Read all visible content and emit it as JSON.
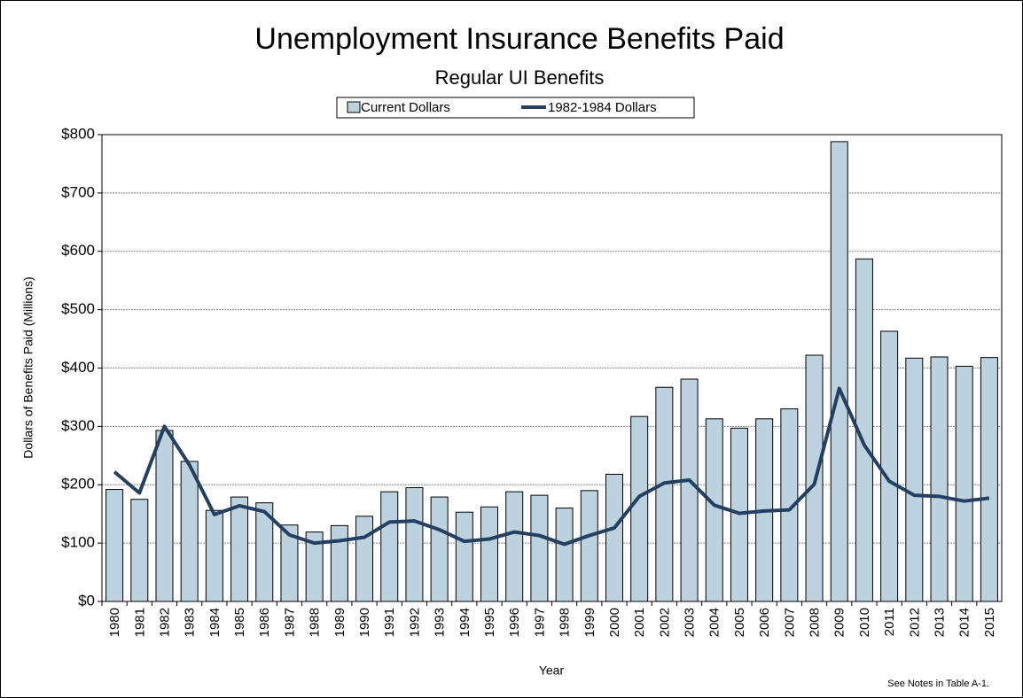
{
  "chart_data": {
    "type": "bar_line",
    "title": "Unemployment Insurance Benefits Paid",
    "subtitle": "Regular UI Benefits",
    "x_label": "Year",
    "y_label": "Dollars of Benefits Paid (Millions)",
    "note": "See Notes in Table A-1.",
    "categories": [
      "1980",
      "1981",
      "1982",
      "1983",
      "1984",
      "1985",
      "1986",
      "1987",
      "1988",
      "1989",
      "1990",
      "1991",
      "1992",
      "1993",
      "1994",
      "1995",
      "1996",
      "1997",
      "1998",
      "1999",
      "2000",
      "2001",
      "2002",
      "2003",
      "2004",
      "2005",
      "2006",
      "2007",
      "2008",
      "2009",
      "2010",
      "2011",
      "2012",
      "2013",
      "2014",
      "2015"
    ],
    "series": [
      {
        "name": "Current Dollars",
        "type": "bar",
        "color": "#bcd3df",
        "values": [
          192,
          175,
          293,
          240,
          156,
          179,
          169,
          131,
          119,
          130,
          146,
          188,
          195,
          179,
          153,
          162,
          188,
          182,
          160,
          190,
          218,
          317,
          367,
          381,
          313,
          297,
          313,
          330,
          422,
          788,
          587,
          463,
          417,
          419,
          403,
          418
        ]
      },
      {
        "name": "1982-1984 Dollars",
        "type": "line",
        "color": "#243f60",
        "values": [
          222,
          186,
          300,
          234,
          149,
          164,
          154,
          114,
          100,
          104,
          110,
          136,
          138,
          123,
          103,
          107,
          119,
          113,
          98,
          113,
          126,
          180,
          203,
          208,
          165,
          151,
          155,
          157,
          201,
          365,
          268,
          206,
          182,
          180,
          172,
          177
        ]
      }
    ],
    "ylim": [
      0,
      800
    ],
    "yticks": [
      {
        "value": 0,
        "label": "$0"
      },
      {
        "value": 100,
        "label": "$100"
      },
      {
        "value": 200,
        "label": "$200"
      },
      {
        "value": 300,
        "label": "$300"
      },
      {
        "value": 400,
        "label": "$400"
      },
      {
        "value": 500,
        "label": "$500"
      },
      {
        "value": 600,
        "label": "$600"
      },
      {
        "value": 700,
        "label": "$700"
      },
      {
        "value": 800,
        "label": "$800"
      }
    ],
    "grid": true,
    "legend": "top"
  }
}
